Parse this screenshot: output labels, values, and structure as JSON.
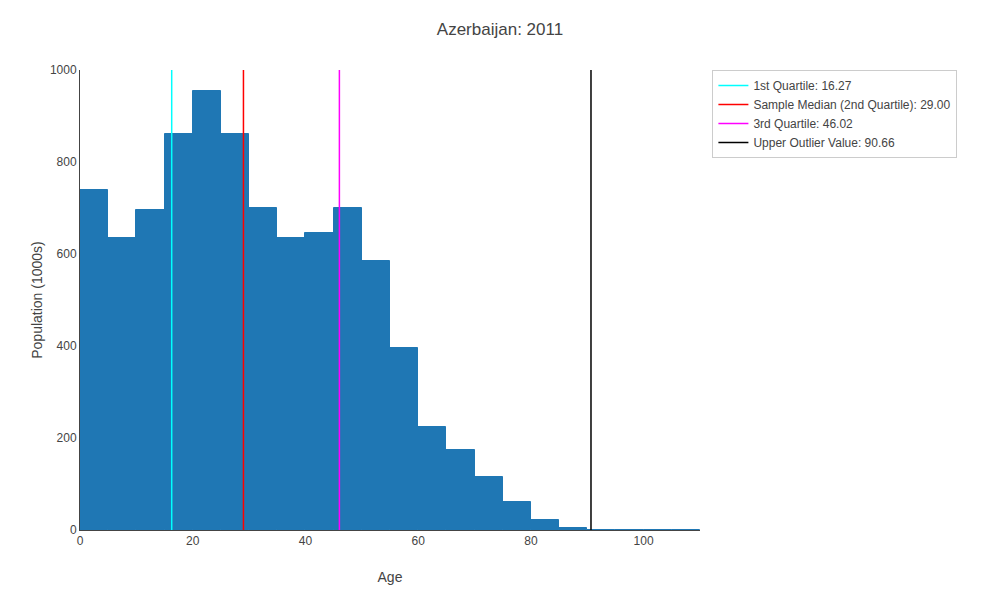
{
  "chart_data": {
    "type": "histogram",
    "title": "Azerbaijan: 2011",
    "xlabel": "Age",
    "ylabel": "Population (1000s)",
    "bins": [
      0,
      5,
      10,
      15,
      20,
      25,
      30,
      35,
      40,
      45,
      50,
      55,
      60,
      65,
      70,
      75,
      80,
      85,
      90,
      95,
      100,
      105,
      110
    ],
    "values": [
      740,
      635,
      695,
      860,
      955,
      860,
      700,
      635,
      645,
      700,
      585,
      395,
      225,
      175,
      115,
      60,
      22,
      5,
      0,
      0,
      0,
      0
    ],
    "color": "#1f77b4",
    "lines": [
      {
        "name": "1st Quartile: 16.27",
        "x": 16.27,
        "color": "cyan"
      },
      {
        "name": "Sample Median (2nd Quartile): 29.00",
        "x": 29.0,
        "color": "red"
      },
      {
        "name": "3rd Quartile: 46.02",
        "x": 46.02,
        "color": "magenta"
      },
      {
        "name": "Upper Outlier Value: 90.66",
        "x": 90.66,
        "color": "black"
      }
    ],
    "xlim": [
      0,
      110
    ],
    "ylim": [
      0,
      1000
    ],
    "xticks": [
      0,
      20,
      40,
      60,
      80,
      100
    ],
    "yticks": [
      0,
      200,
      400,
      600,
      800,
      1000
    ],
    "grid": false,
    "legend": "upper right"
  }
}
